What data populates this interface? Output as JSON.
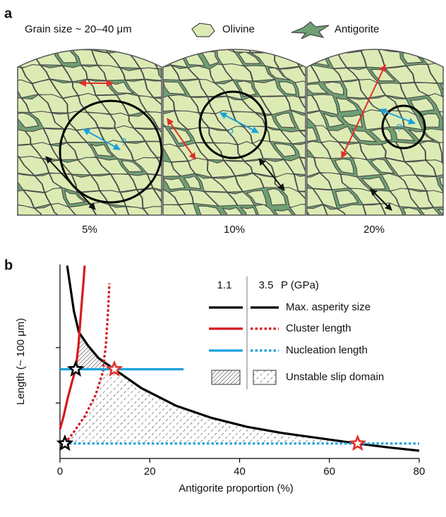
{
  "panel_a": {
    "label": "a",
    "grain_size": "Grain size ~ 20–40 μm",
    "olivine": "Olivine",
    "antigorite": "Antigorite",
    "columns": [
      {
        "proportion": "5%",
        "query": "?"
      },
      {
        "proportion": "10%",
        "query": "?"
      },
      {
        "proportion": "20%",
        "query": "?"
      }
    ]
  },
  "chart_data": {
    "type": "line",
    "label": "b",
    "xlabel": "Antigorite proportion (%)",
    "ylabel": "Length (~ 100 μm)",
    "xlim": [
      0,
      80
    ],
    "xticks": [
      0,
      20,
      40,
      60,
      80
    ],
    "ylim": [
      0,
      3.5
    ],
    "yticks": [
      1,
      2
    ],
    "legend": {
      "pressure_label": "P (GPa)",
      "pressures": [
        "1.1",
        "3.5"
      ],
      "rows": [
        {
          "name": "Max. asperity size"
        },
        {
          "name": "Cluster length"
        },
        {
          "name": "Nucleation length"
        },
        {
          "name": "Unstable slip domain",
          "hatch": [
            "dense",
            "sparse"
          ]
        }
      ]
    },
    "series": [
      {
        "legend": 0,
        "color": "#000000",
        "style": "solid",
        "x": [
          1.6,
          2.4,
          3.1,
          4.2,
          6.3,
          8.6,
          12.1,
          18.1,
          25.9,
          33.8,
          41.7,
          49.5,
          57.4,
          66.3,
          73.1,
          80
        ],
        "values": [
          3.48,
          3.04,
          2.66,
          2.28,
          2.03,
          1.81,
          1.61,
          1.27,
          0.95,
          0.73,
          0.57,
          0.46,
          0.37,
          0.27,
          0.2,
          0.14
        ]
      },
      {
        "legend": 1,
        "pressure": 0,
        "color": "#d7191f",
        "style": "solid",
        "x": [
          0,
          0.8,
          1.7,
          2.7,
          3.5,
          4.1,
          4.7,
          5.2,
          5.5
        ],
        "values": [
          0.53,
          0.76,
          1.08,
          1.39,
          1.61,
          2.03,
          2.66,
          3.16,
          3.48
        ]
      },
      {
        "legend": 1,
        "pressure": 1,
        "color": "#d7191f",
        "style": "dotted",
        "x": [
          1.1,
          3.1,
          5.5,
          7.9,
          9.4,
          10.2,
          10.7,
          11
        ],
        "values": [
          0.27,
          0.48,
          0.76,
          1.14,
          1.52,
          2.03,
          2.66,
          3.16
        ]
      },
      {
        "legend": 2,
        "pressure": 0,
        "color": "#1ba1dc",
        "style": "solid",
        "x": [
          0,
          27.5
        ],
        "values": [
          1.61,
          1.61
        ]
      },
      {
        "legend": 2,
        "pressure": 1,
        "color": "#1ba1dc",
        "style": "dotted",
        "x": [
          0,
          80
        ],
        "values": [
          0.27,
          0.27
        ]
      }
    ],
    "markers": [
      {
        "x": 3.5,
        "y": 1.61,
        "color": "#000000"
      },
      {
        "x": 1.1,
        "y": 0.27,
        "color": "#000000"
      },
      {
        "x": 12.1,
        "y": 1.61,
        "color": "#e0302c"
      },
      {
        "x": 66.3,
        "y": 0.27,
        "color": "#e0302c"
      }
    ]
  }
}
